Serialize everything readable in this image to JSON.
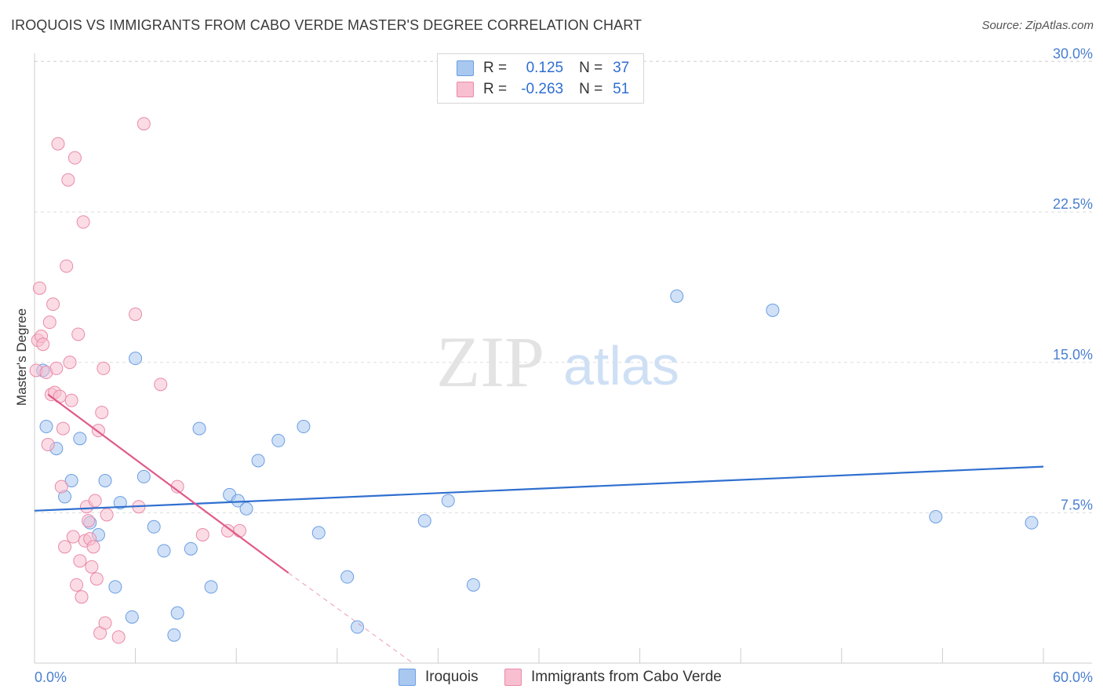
{
  "title": "IROQUOIS VS IMMIGRANTS FROM CABO VERDE MASTER'S DEGREE CORRELATION CHART",
  "source": "Source: ZipAtlas.com",
  "watermark": {
    "zip": "ZIP",
    "atlas": "atlas"
  },
  "legend": {
    "r_label": "R =",
    "n_label": "N =",
    "rows": [
      {
        "r": "0.125",
        "n": "37",
        "color": "#a9c8f0",
        "border": "#6b9ee3"
      },
      {
        "r": "-0.263",
        "n": "51",
        "color": "#f7bfd0",
        "border": "#e98aaa"
      }
    ]
  },
  "bottom_legend": [
    "Iroquois",
    "Immigrants from Cabo Verde"
  ],
  "chart_data": {
    "type": "scatter",
    "title": "IROQUOIS VS IMMIGRANTS FROM CABO VERDE MASTER'S DEGREE CORRELATION CHART",
    "xlabel": "",
    "ylabel": "Master's Degree",
    "xlim": [
      0,
      60
    ],
    "ylim": [
      0,
      30
    ],
    "y_ticks": [
      7.5,
      15.0,
      22.5,
      30.0
    ],
    "y_tick_labels": [
      "7.5%",
      "15.0%",
      "22.5%",
      "30.0%"
    ],
    "x_tick_labels": [
      "0.0%",
      "60.0%"
    ],
    "series": [
      {
        "name": "Iroquois",
        "color": "#a9c8f0",
        "stroke": "#6b9ee3",
        "line_color": "#2f6fcf",
        "points": [
          [
            0.5,
            14.6
          ],
          [
            0.7,
            11.8
          ],
          [
            1.3,
            10.7
          ],
          [
            1.8,
            8.3
          ],
          [
            2.2,
            9.1
          ],
          [
            2.7,
            11.2
          ],
          [
            3.3,
            7.0
          ],
          [
            3.8,
            6.4
          ],
          [
            4.2,
            9.1
          ],
          [
            4.8,
            3.8
          ],
          [
            5.1,
            8.0
          ],
          [
            5.8,
            2.3
          ],
          [
            6.0,
            15.2
          ],
          [
            6.5,
            9.3
          ],
          [
            7.1,
            6.8
          ],
          [
            7.7,
            5.6
          ],
          [
            8.3,
            1.4
          ],
          [
            8.5,
            2.5
          ],
          [
            9.3,
            5.7
          ],
          [
            9.8,
            11.7
          ],
          [
            10.5,
            3.8
          ],
          [
            11.6,
            8.4
          ],
          [
            12.1,
            8.1
          ],
          [
            12.6,
            7.7
          ],
          [
            13.3,
            10.1
          ],
          [
            14.5,
            11.1
          ],
          [
            16.0,
            11.8
          ],
          [
            16.9,
            6.5
          ],
          [
            18.6,
            4.3
          ],
          [
            19.2,
            1.8
          ],
          [
            23.2,
            7.1
          ],
          [
            24.6,
            8.1
          ],
          [
            26.1,
            3.9
          ],
          [
            38.2,
            18.3
          ],
          [
            43.9,
            17.6
          ],
          [
            53.6,
            7.3
          ],
          [
            59.3,
            7.0
          ]
        ],
        "trend": {
          "x0": 0,
          "y0": 7.6,
          "x1": 60,
          "y1": 9.8,
          "dashed_to": null
        }
      },
      {
        "name": "Immigrants from Cabo Verde",
        "color": "#f7bfd0",
        "stroke": "#e98aaa",
        "line_color": "#e05a8a",
        "points": [
          [
            0.1,
            14.6
          ],
          [
            0.2,
            16.1
          ],
          [
            0.3,
            18.7
          ],
          [
            0.4,
            16.3
          ],
          [
            0.5,
            15.9
          ],
          [
            0.7,
            14.5
          ],
          [
            0.8,
            10.9
          ],
          [
            0.9,
            17.0
          ],
          [
            1.0,
            13.4
          ],
          [
            1.1,
            17.9
          ],
          [
            1.2,
            13.5
          ],
          [
            1.3,
            14.7
          ],
          [
            1.4,
            25.9
          ],
          [
            1.5,
            13.3
          ],
          [
            1.6,
            8.8
          ],
          [
            1.7,
            11.7
          ],
          [
            1.8,
            5.8
          ],
          [
            1.9,
            19.8
          ],
          [
            2.0,
            24.1
          ],
          [
            2.1,
            15.0
          ],
          [
            2.2,
            13.1
          ],
          [
            2.3,
            6.3
          ],
          [
            2.4,
            25.2
          ],
          [
            2.5,
            3.9
          ],
          [
            2.6,
            16.4
          ],
          [
            2.7,
            5.1
          ],
          [
            2.8,
            3.3
          ],
          [
            2.9,
            22.0
          ],
          [
            3.0,
            6.1
          ],
          [
            3.1,
            7.8
          ],
          [
            3.2,
            7.1
          ],
          [
            3.3,
            6.2
          ],
          [
            3.4,
            4.8
          ],
          [
            3.5,
            5.8
          ],
          [
            3.6,
            8.1
          ],
          [
            3.7,
            4.2
          ],
          [
            3.8,
            11.6
          ],
          [
            3.9,
            1.5
          ],
          [
            4.0,
            12.5
          ],
          [
            4.1,
            14.7
          ],
          [
            4.2,
            2.0
          ],
          [
            4.3,
            7.4
          ],
          [
            5.0,
            1.3
          ],
          [
            6.0,
            17.4
          ],
          [
            6.2,
            7.8
          ],
          [
            6.5,
            26.9
          ],
          [
            7.5,
            13.9
          ],
          [
            8.5,
            8.8
          ],
          [
            10.0,
            6.4
          ],
          [
            11.5,
            6.6
          ],
          [
            12.2,
            6.6
          ]
        ],
        "trend": {
          "x0": 0.8,
          "y0": 13.4,
          "x1": 15.1,
          "y1": 4.5,
          "dashed_to": [
            22.5,
            0
          ]
        }
      }
    ]
  }
}
